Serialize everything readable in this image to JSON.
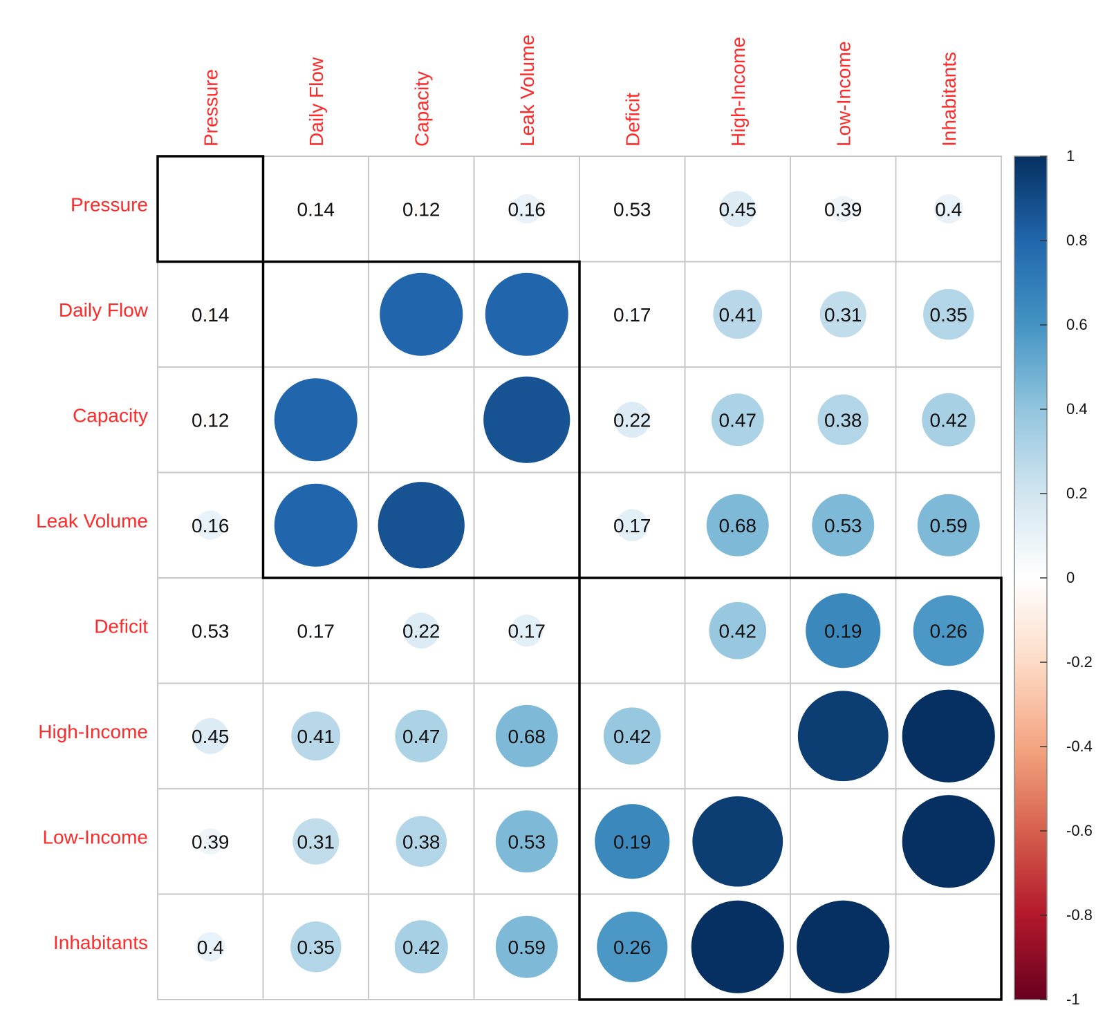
{
  "chart_data": {
    "type": "heatmap",
    "variables": [
      "Pressure",
      "Daily Flow",
      "Capacity",
      "Leak Volume",
      "Deficit",
      "High-Income",
      "Low-Income",
      "Inhabitants"
    ],
    "matrix": [
      [
        null,
        0.14,
        0.12,
        0.16,
        0.53,
        0.45,
        0.39,
        0.4
      ],
      [
        0.14,
        null,
        0.88,
        0.88,
        0.17,
        0.41,
        0.31,
        0.35
      ],
      [
        0.12,
        0.88,
        null,
        0.93,
        0.22,
        0.47,
        0.38,
        0.42
      ],
      [
        0.16,
        0.88,
        0.93,
        null,
        0.17,
        0.68,
        0.53,
        0.59
      ],
      [
        0.53,
        0.17,
        0.22,
        0.17,
        null,
        0.42,
        0.19,
        0.26
      ],
      [
        0.45,
        0.41,
        0.47,
        0.68,
        0.42,
        null,
        0.97,
        1.0
      ],
      [
        0.39,
        0.31,
        0.38,
        0.53,
        0.19,
        0.97,
        null,
        1.0
      ],
      [
        0.4,
        0.35,
        0.42,
        0.59,
        0.26,
        1.0,
        1.0,
        null
      ]
    ],
    "circle_values": [
      [
        null,
        -0.02,
        -0.03,
        0.1,
        0.02,
        0.15,
        0.08,
        0.1
      ],
      [
        -0.02,
        null,
        0.8,
        0.8,
        0.02,
        0.28,
        0.25,
        0.3
      ],
      [
        -0.03,
        0.8,
        null,
        0.87,
        0.15,
        0.32,
        0.3,
        0.33
      ],
      [
        0.1,
        0.8,
        0.87,
        null,
        0.12,
        0.45,
        0.45,
        0.45
      ],
      [
        0.02,
        0.02,
        0.15,
        0.12,
        null,
        0.38,
        0.65,
        0.58
      ],
      [
        0.15,
        0.28,
        0.32,
        0.45,
        0.38,
        null,
        0.95,
        1.0
      ],
      [
        0.08,
        0.25,
        0.3,
        0.45,
        0.65,
        0.95,
        null,
        1.0
      ],
      [
        0.1,
        0.3,
        0.33,
        0.45,
        0.58,
        1.0,
        1.0,
        null
      ]
    ],
    "labels": [
      [
        "",
        "0.14",
        "0.12",
        "0.16",
        "0.53",
        "0.45",
        "0.39",
        "0.4"
      ],
      [
        "0.14",
        "",
        "",
        "",
        "0.17",
        "0.41",
        "0.31",
        "0.35"
      ],
      [
        "0.12",
        "",
        "",
        "",
        "0.22",
        "0.47",
        "0.38",
        "0.42"
      ],
      [
        "0.16",
        "",
        "",
        "",
        "0.17",
        "0.68",
        "0.53",
        "0.59"
      ],
      [
        "0.53",
        "0.17",
        "0.22",
        "0.17",
        "",
        "0.42",
        "0.19",
        "0.26"
      ],
      [
        "0.45",
        "0.41",
        "0.47",
        "0.68",
        "0.42",
        "",
        "",
        ""
      ],
      [
        "0.39",
        "0.31",
        "0.38",
        "0.53",
        "0.19",
        "",
        "",
        ""
      ],
      [
        "0.4",
        "0.35",
        "0.42",
        "0.59",
        "0.26",
        "",
        "",
        ""
      ]
    ],
    "clusters": [
      {
        "from": 0,
        "to": 0
      },
      {
        "from": 1,
        "to": 3
      },
      {
        "from": 4,
        "to": 7
      }
    ],
    "colorbar": {
      "range": [
        -1,
        1
      ],
      "ticks": [
        "1",
        "0.8",
        "0.6",
        "0.4",
        "0.2",
        "0",
        "-0.2",
        "-0.4",
        "-0.6",
        "-0.8",
        "-1"
      ],
      "colors": [
        "#053061",
        "#2166ac",
        "#4393c3",
        "#92c5de",
        "#d1e5f0",
        "#ffffff",
        "#fddbc7",
        "#f4a582",
        "#d6604d",
        "#b2182b",
        "#67001f"
      ]
    },
    "label_color": "#ff2a2a",
    "grid_color": "#c8c8c8"
  }
}
